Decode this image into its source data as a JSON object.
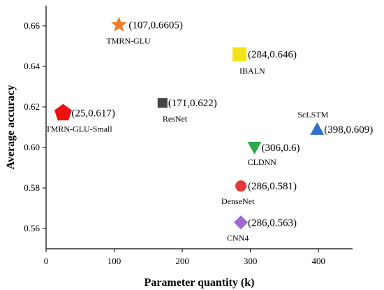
{
  "chart_data": {
    "type": "scatter",
    "xlabel": "Parameter quantity (k)",
    "ylabel": "Average accuracy",
    "xlim": [
      0,
      450
    ],
    "ylim": [
      0.55,
      0.67
    ],
    "xticks": [
      0,
      100,
      200,
      300,
      400
    ],
    "yticks": [
      0.56,
      0.58,
      0.6,
      0.62,
      0.64,
      0.66
    ],
    "grid": false,
    "points": [
      {
        "name": "TMRN-GLU",
        "x": 107,
        "y": 0.6605,
        "label": "(107,0.6605)",
        "marker": "star",
        "color": "#f07a2a"
      },
      {
        "name": "IBALN",
        "x": 284,
        "y": 0.646,
        "label": "(284,0.646)",
        "marker": "square",
        "color": "#f5e214"
      },
      {
        "name": "TMRN-GLU-Small",
        "x": 25,
        "y": 0.617,
        "label": "(25,0.617)",
        "marker": "pentagon",
        "color": "#ee1111"
      },
      {
        "name": "ResNet",
        "x": 171,
        "y": 0.622,
        "label": "(171,0.622)",
        "marker": "square",
        "color": "#444444"
      },
      {
        "name": "ScLSTM",
        "x": 398,
        "y": 0.609,
        "label": "(398,0.609)",
        "marker": "triangle-up",
        "color": "#2f6fd3"
      },
      {
        "name": "CLDNN",
        "x": 306,
        "y": 0.6,
        "label": "(306,0.6)",
        "marker": "triangle-down",
        "color": "#2fa84f"
      },
      {
        "name": "DenseNet",
        "x": 286,
        "y": 0.581,
        "label": "(286,0.581)",
        "marker": "circle",
        "color": "#e8363a"
      },
      {
        "name": "CNN4",
        "x": 286,
        "y": 0.563,
        "label": "(286,0.563)",
        "marker": "diamond",
        "color": "#a06ad6"
      }
    ]
  }
}
